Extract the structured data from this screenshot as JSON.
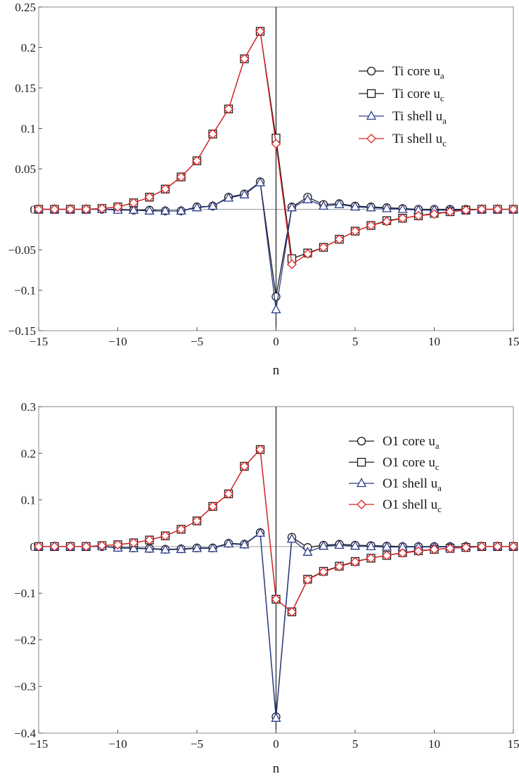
{
  "chart_data": [
    {
      "type": "line",
      "xlabel": "n",
      "ylabel": "",
      "xlim": [
        -15,
        15
      ],
      "ylim": [
        -0.15,
        0.25
      ],
      "xticks": [
        -15,
        -10,
        -5,
        0,
        5,
        10,
        15
      ],
      "xtick_labels": [
        "−15",
        "−10",
        "−5",
        "0",
        "5",
        "10",
        "15"
      ],
      "yticks": [
        -0.15,
        -0.1,
        -0.05,
        0,
        0.05,
        0.1,
        0.15,
        0.2,
        0.25
      ],
      "ytick_labels": [
        "−0.15",
        "−0.1",
        "−0.05",
        "0",
        "0.05",
        "0.1",
        "0.15",
        "0.2",
        "0.25"
      ],
      "legend_position": "right",
      "x": [
        -15,
        -14,
        -13,
        -12,
        -11,
        -10,
        -9,
        -8,
        -7,
        -6,
        -5,
        -4,
        -3,
        -2,
        -1,
        0,
        1,
        2,
        3,
        4,
        5,
        6,
        7,
        8,
        9,
        10,
        11,
        12,
        13,
        14,
        15
      ],
      "series": [
        {
          "name": "Ti core u",
          "subscript": "a",
          "marker": "circle",
          "color": "#1a1a1a",
          "values": [
            0,
            0,
            0,
            0,
            0,
            0,
            -0.001,
            -0.001,
            -0.002,
            -0.002,
            0.003,
            0.004,
            0.015,
            0.019,
            0.034,
            -0.108,
            0.003,
            0.015,
            0.006,
            0.007,
            0.004,
            0.003,
            0.002,
            0.001,
            0,
            0,
            0,
            0,
            0,
            0,
            0
          ]
        },
        {
          "name": "Ti core u",
          "subscript": "c",
          "marker": "square",
          "color": "#1a1a1a",
          "values": [
            0,
            0,
            0,
            0,
            0.001,
            0.003,
            0.008,
            0.015,
            0.025,
            0.04,
            0.06,
            0.093,
            0.124,
            0.186,
            0.22,
            0.088,
            -0.061,
            -0.054,
            -0.047,
            -0.037,
            -0.027,
            -0.02,
            -0.014,
            -0.011,
            -0.008,
            -0.005,
            -0.003,
            -0.001,
            0,
            0,
            0
          ]
        },
        {
          "name": "Ti shell u",
          "subscript": "a",
          "marker": "triangle",
          "color": "#2a3a8c",
          "values": [
            0,
            0,
            0,
            0,
            0,
            -0.001,
            -0.001,
            -0.002,
            -0.002,
            -0.002,
            0.002,
            0.004,
            0.014,
            0.018,
            0.033,
            -0.124,
            0.002,
            0.012,
            0.004,
            0.006,
            0.003,
            0.002,
            0.001,
            0,
            -0.001,
            -0.001,
            -0.001,
            -0.001,
            0,
            0,
            0
          ]
        },
        {
          "name": "Ti shell u",
          "subscript": "c",
          "marker": "diamond",
          "color": "#e02020",
          "values": [
            0,
            0,
            0,
            0,
            0.001,
            0.003,
            0.008,
            0.015,
            0.025,
            0.04,
            0.06,
            0.093,
            0.124,
            0.186,
            0.22,
            0.081,
            -0.068,
            -0.055,
            -0.047,
            -0.037,
            -0.027,
            -0.02,
            -0.015,
            -0.011,
            -0.008,
            -0.006,
            -0.003,
            -0.001,
            0,
            0,
            0
          ]
        }
      ]
    },
    {
      "type": "line",
      "xlabel": "n",
      "ylabel": "",
      "xlim": [
        -15,
        15
      ],
      "ylim": [
        -0.4,
        0.3
      ],
      "xticks": [
        -15,
        -10,
        -5,
        0,
        5,
        10,
        15
      ],
      "xtick_labels": [
        "−15",
        "−10",
        "−5",
        "0",
        "5",
        "10",
        "15"
      ],
      "yticks": [
        -0.4,
        -0.3,
        -0.2,
        -0.1,
        0,
        0.1,
        0.2,
        0.3
      ],
      "ytick_labels": [
        "−0.4",
        "−0.3",
        "−0.2",
        "−0.1",
        "0",
        "0.1",
        "0.2",
        "0.3"
      ],
      "legend_position": "right",
      "x": [
        -15,
        -14,
        -13,
        -12,
        -11,
        -10,
        -9,
        -8,
        -7,
        -6,
        -5,
        -4,
        -3,
        -2,
        -1,
        0,
        1,
        2,
        3,
        4,
        5,
        6,
        7,
        8,
        9,
        10,
        11,
        12,
        13,
        14,
        15
      ],
      "series": [
        {
          "name": "O1 core u",
          "subscript": "a",
          "marker": "circle",
          "color": "#1a1a1a",
          "values": [
            0,
            0,
            0,
            0,
            0,
            -0.002,
            -0.003,
            -0.004,
            -0.006,
            -0.005,
            -0.003,
            -0.003,
            0.007,
            0.005,
            0.03,
            -0.365,
            0.02,
            -0.002,
            0.003,
            0.005,
            0.003,
            0.002,
            0.001,
            0,
            0,
            0,
            0,
            0,
            0,
            0,
            0
          ]
        },
        {
          "name": "O1 core u",
          "subscript": "c",
          "marker": "square",
          "color": "#1a1a1a",
          "values": [
            0,
            0,
            0,
            0,
            0.002,
            0.004,
            0.008,
            0.014,
            0.023,
            0.037,
            0.055,
            0.086,
            0.113,
            0.172,
            0.208,
            -0.113,
            -0.14,
            -0.07,
            -0.053,
            -0.042,
            -0.032,
            -0.025,
            -0.019,
            -0.013,
            -0.009,
            -0.006,
            -0.004,
            -0.002,
            0,
            0,
            0
          ]
        },
        {
          "name": "O1 shell u",
          "subscript": "a",
          "marker": "triangle",
          "color": "#2a3a8c",
          "values": [
            0,
            0,
            0,
            0,
            0,
            -0.003,
            -0.004,
            -0.005,
            -0.007,
            -0.006,
            -0.004,
            -0.004,
            0.006,
            0.004,
            0.029,
            -0.368,
            0.016,
            -0.012,
            0.001,
            0.003,
            0.001,
            0,
            -0.001,
            -0.001,
            -0.001,
            -0.001,
            -0.001,
            0,
            0,
            0,
            0
          ]
        },
        {
          "name": "O1 shell u",
          "subscript": "c",
          "marker": "diamond",
          "color": "#e02020",
          "values": [
            0,
            0,
            0,
            0,
            0.002,
            0.004,
            0.008,
            0.014,
            0.023,
            0.037,
            0.055,
            0.086,
            0.113,
            0.172,
            0.208,
            -0.113,
            -0.14,
            -0.071,
            -0.054,
            -0.043,
            -0.033,
            -0.025,
            -0.019,
            -0.014,
            -0.01,
            -0.006,
            -0.004,
            -0.002,
            0,
            0,
            0
          ]
        }
      ]
    }
  ]
}
